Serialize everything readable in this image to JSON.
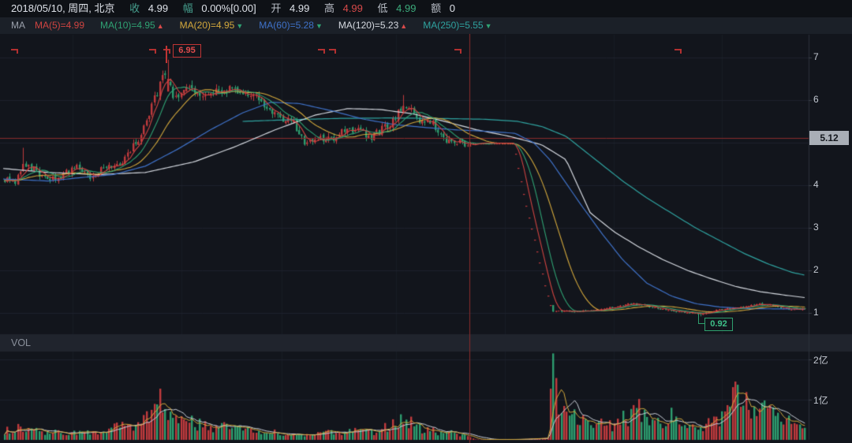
{
  "header": {
    "date_text": "2018/05/10, 周四, 北京",
    "close_label": "收",
    "close_value": "4.99",
    "amp_label": "幅",
    "amp_value": "0.00%[0.00]",
    "open_label": "开",
    "open_value": "4.99",
    "high_label": "高",
    "high_value": "4.99",
    "low_label": "低",
    "low_value": "4.99",
    "amount_label": "额",
    "amount_value": "0"
  },
  "ma_legend": {
    "title": "MA",
    "items": [
      {
        "label": "MA(5)=4.99",
        "color": "#cf4441",
        "arrow": "",
        "arrow_color": ""
      },
      {
        "label": "MA(10)=4.95",
        "color": "#2fa273",
        "arrow": "▲",
        "arrow_color": "#d84a4a"
      },
      {
        "label": "MA(20)=4.95",
        "color": "#d3a83c",
        "arrow": "▼",
        "arrow_color": "#2fa273"
      },
      {
        "label": "MA(60)=5.28",
        "color": "#3f72c9",
        "arrow": "▼",
        "arrow_color": "#2fa273"
      },
      {
        "label": "MA(120)=5.23",
        "color": "#d6dae1",
        "arrow": "▲",
        "arrow_color": "#d84a4a"
      },
      {
        "label": "MA(250)=5.55",
        "color": "#2fa3a0",
        "arrow": "▼",
        "arrow_color": "#2fa273"
      }
    ]
  },
  "vol_panel": {
    "label": "VOL",
    "ticks": [
      {
        "label": "2亿",
        "value": 2
      },
      {
        "label": "1亿",
        "value": 1
      }
    ]
  },
  "price_axis": {
    "visible_ticks": [
      7,
      6,
      4,
      3,
      2,
      1
    ],
    "last_price": "5.12"
  },
  "markers": {
    "high": "6.95",
    "low": "0.92"
  },
  "chart_data": {
    "type": "candlestick",
    "panels": [
      "price",
      "volume"
    ],
    "price_ylim": [
      0.55,
      7.55
    ],
    "volume_ylim": [
      0,
      2.2
    ],
    "volume_unit": "亿",
    "last_price": 5.12,
    "high_marker": {
      "value": 6.95,
      "x": 0.2065
    },
    "low_marker": {
      "value": 0.92,
      "x": 0.866
    },
    "crosshair_x": 0.5805,
    "suspension_range": [
      0.584,
      0.637
    ],
    "cascade_range": [
      0.637,
      0.684
    ],
    "close_path": [
      [
        0.006,
        4.15
      ],
      [
        0.018,
        4.05
      ],
      [
        0.029,
        4.55
      ],
      [
        0.044,
        4.35
      ],
      [
        0.059,
        4.1
      ],
      [
        0.073,
        4.2
      ],
      [
        0.093,
        4.45
      ],
      [
        0.112,
        4.2
      ],
      [
        0.132,
        4.45
      ],
      [
        0.151,
        4.55
      ],
      [
        0.171,
        5.1
      ],
      [
        0.185,
        5.7
      ],
      [
        0.2,
        6.5
      ],
      [
        0.2065,
        6.6
      ],
      [
        0.213,
        6.15
      ],
      [
        0.222,
        6.0
      ],
      [
        0.232,
        6.3
      ],
      [
        0.246,
        6.05
      ],
      [
        0.26,
        6.2
      ],
      [
        0.275,
        6.15
      ],
      [
        0.289,
        6.3
      ],
      [
        0.304,
        6.1
      ],
      [
        0.32,
        6.05
      ],
      [
        0.334,
        5.7
      ],
      [
        0.349,
        5.6
      ],
      [
        0.363,
        5.45
      ],
      [
        0.377,
        4.95
      ],
      [
        0.392,
        5.1
      ],
      [
        0.408,
        5.05
      ],
      [
        0.423,
        5.25
      ],
      [
        0.441,
        5.3
      ],
      [
        0.46,
        5.15
      ],
      [
        0.48,
        5.4
      ],
      [
        0.496,
        5.8
      ],
      [
        0.505,
        5.85
      ],
      [
        0.519,
        5.55
      ],
      [
        0.535,
        5.45
      ],
      [
        0.548,
        5.1
      ],
      [
        0.564,
        5.0
      ],
      [
        0.58,
        4.99
      ],
      [
        0.584,
        4.99
      ],
      [
        0.636,
        4.99
      ],
      [
        0.639,
        4.6
      ],
      [
        0.65,
        3.6
      ],
      [
        0.665,
        2.4
      ],
      [
        0.675,
        1.6
      ],
      [
        0.683,
        1.03
      ],
      [
        0.687,
        1.05
      ],
      [
        0.712,
        1.03
      ],
      [
        0.737,
        1.06
      ],
      [
        0.761,
        1.15
      ],
      [
        0.78,
        1.22
      ],
      [
        0.8,
        1.15
      ],
      [
        0.824,
        1.07
      ],
      [
        0.847,
        1.02
      ],
      [
        0.866,
        0.96
      ],
      [
        0.88,
        1.05
      ],
      [
        0.898,
        1.1
      ],
      [
        0.917,
        1.13
      ],
      [
        0.938,
        1.22
      ],
      [
        0.956,
        1.17
      ],
      [
        0.976,
        1.08
      ],
      [
        0.995,
        1.1
      ]
    ],
    "volume_path": [
      [
        0.006,
        0.22
      ],
      [
        0.03,
        0.3
      ],
      [
        0.055,
        0.15
      ],
      [
        0.08,
        0.2
      ],
      [
        0.11,
        0.18
      ],
      [
        0.14,
        0.3
      ],
      [
        0.165,
        0.35
      ],
      [
        0.185,
        0.55
      ],
      [
        0.2,
        0.95
      ],
      [
        0.21,
        0.8
      ],
      [
        0.225,
        0.5
      ],
      [
        0.25,
        0.35
      ],
      [
        0.28,
        0.3
      ],
      [
        0.31,
        0.28
      ],
      [
        0.34,
        0.18
      ],
      [
        0.37,
        0.13
      ],
      [
        0.4,
        0.18
      ],
      [
        0.43,
        0.22
      ],
      [
        0.46,
        0.18
      ],
      [
        0.48,
        0.35
      ],
      [
        0.497,
        0.6
      ],
      [
        0.515,
        0.3
      ],
      [
        0.54,
        0.2
      ],
      [
        0.565,
        0.16
      ],
      [
        0.58,
        0.13
      ],
      [
        0.586,
        0.01
      ],
      [
        0.636,
        0.01
      ],
      [
        0.66,
        0.03
      ],
      [
        0.678,
        0.05
      ],
      [
        0.683,
        2.15
      ],
      [
        0.69,
        1.0
      ],
      [
        0.7,
        0.75
      ],
      [
        0.715,
        0.5
      ],
      [
        0.735,
        0.38
      ],
      [
        0.755,
        0.35
      ],
      [
        0.775,
        0.55
      ],
      [
        0.785,
        0.9
      ],
      [
        0.8,
        0.55
      ],
      [
        0.815,
        0.45
      ],
      [
        0.83,
        0.6
      ],
      [
        0.845,
        0.3
      ],
      [
        0.862,
        0.3
      ],
      [
        0.878,
        0.45
      ],
      [
        0.895,
        0.6
      ],
      [
        0.905,
        0.85
      ],
      [
        0.908,
        1.45
      ],
      [
        0.913,
        1.3
      ],
      [
        0.925,
        0.7
      ],
      [
        0.94,
        0.6
      ],
      [
        0.95,
        0.8
      ],
      [
        0.963,
        0.65
      ],
      [
        0.975,
        0.6
      ],
      [
        0.985,
        0.45
      ],
      [
        0.995,
        0.5
      ]
    ],
    "ma_paths": {
      "ma60": [
        [
          0,
          4.15
        ],
        [
          0.06,
          4.1
        ],
        [
          0.1,
          4.18
        ],
        [
          0.14,
          4.25
        ],
        [
          0.18,
          4.45
        ],
        [
          0.22,
          4.85
        ],
        [
          0.26,
          5.3
        ],
        [
          0.3,
          5.7
        ],
        [
          0.335,
          5.95
        ],
        [
          0.37,
          5.92
        ],
        [
          0.41,
          5.75
        ],
        [
          0.45,
          5.55
        ],
        [
          0.49,
          5.42
        ],
        [
          0.53,
          5.35
        ],
        [
          0.565,
          5.3
        ],
        [
          0.6,
          5.27
        ],
        [
          0.637,
          5.22
        ],
        [
          0.66,
          5.0
        ],
        [
          0.68,
          4.6
        ],
        [
          0.7,
          4.05
        ],
        [
          0.72,
          3.5
        ],
        [
          0.745,
          2.85
        ],
        [
          0.77,
          2.25
        ],
        [
          0.8,
          1.7
        ],
        [
          0.83,
          1.4
        ],
        [
          0.86,
          1.22
        ],
        [
          0.89,
          1.14
        ],
        [
          0.93,
          1.1
        ],
        [
          1,
          1.09
        ]
      ],
      "ma120": [
        [
          0,
          4.4
        ],
        [
          0.06,
          4.3
        ],
        [
          0.12,
          4.25
        ],
        [
          0.18,
          4.3
        ],
        [
          0.24,
          4.55
        ],
        [
          0.29,
          4.9
        ],
        [
          0.34,
          5.3
        ],
        [
          0.39,
          5.65
        ],
        [
          0.43,
          5.8
        ],
        [
          0.47,
          5.78
        ],
        [
          0.51,
          5.68
        ],
        [
          0.55,
          5.5
        ],
        [
          0.59,
          5.3
        ],
        [
          0.63,
          5.15
        ],
        [
          0.67,
          4.95
        ],
        [
          0.7,
          4.6
        ],
        [
          0.73,
          3.35
        ],
        [
          0.76,
          2.9
        ],
        [
          0.79,
          2.55
        ],
        [
          0.82,
          2.25
        ],
        [
          0.85,
          2.0
        ],
        [
          0.88,
          1.8
        ],
        [
          0.91,
          1.62
        ],
        [
          0.94,
          1.5
        ],
        [
          0.97,
          1.42
        ],
        [
          1,
          1.35
        ]
      ],
      "ma250": [
        [
          0.3,
          5.5
        ],
        [
          0.36,
          5.54
        ],
        [
          0.42,
          5.57
        ],
        [
          0.48,
          5.58
        ],
        [
          0.54,
          5.57
        ],
        [
          0.6,
          5.55
        ],
        [
          0.64,
          5.5
        ],
        [
          0.67,
          5.38
        ],
        [
          0.7,
          5.15
        ],
        [
          0.72,
          4.85
        ],
        [
          0.74,
          4.55
        ],
        [
          0.77,
          4.1
        ],
        [
          0.8,
          3.7
        ],
        [
          0.83,
          3.35
        ],
        [
          0.86,
          3.0
        ],
        [
          0.89,
          2.7
        ],
        [
          0.92,
          2.4
        ],
        [
          0.95,
          2.15
        ],
        [
          0.98,
          1.95
        ],
        [
          1,
          1.87
        ]
      ]
    },
    "event_marker_x": [
      0.0137,
      0.184,
      0.202,
      0.393,
      0.407,
      0.562,
      0.834
    ],
    "colors": {
      "up": "#c03a3d",
      "down": "#2d9c6e",
      "ma5": "#cf4441",
      "ma10": "#2fa273",
      "ma20": "#d3a83c",
      "ma60": "#3f72c9",
      "ma120": "#d6dae1",
      "ma250": "#2fa3a0",
      "vol_ma5": "#d3a83c",
      "vol_ma10": "#c9cfd8",
      "crosshair": "#8a2b2b",
      "grid": "#1d222c",
      "vgrid": "#181c25",
      "axis_line": "#2b303a",
      "divider_bg": "#20242d"
    }
  }
}
